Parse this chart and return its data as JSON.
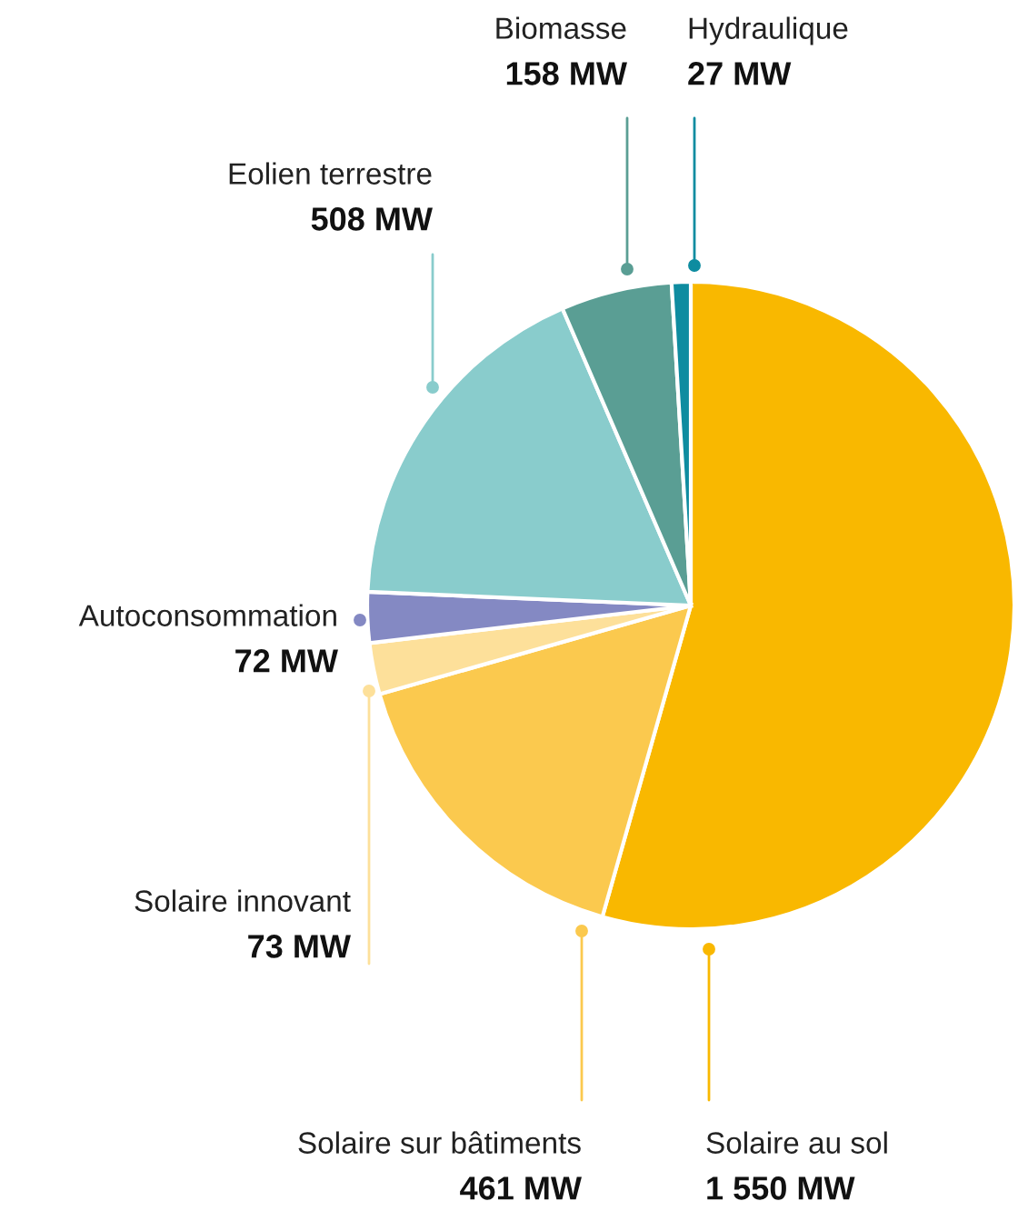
{
  "chart_data": {
    "type": "pie",
    "categories": [
      "Solaire au sol",
      "Solaire sur bâtiments",
      "Solaire innovant",
      "Autoconsommation",
      "Eolien terrestre",
      "Biomasse",
      "Hydraulique"
    ],
    "values": [
      1550,
      461,
      73,
      72,
      508,
      158,
      27
    ],
    "value_labels": [
      "1 550 MW",
      "461 MW",
      "73 MW",
      "72 MW",
      "508 MW",
      "158 MW",
      "27 MW"
    ],
    "colors": [
      "#f9b800",
      "#fbc94e",
      "#fde09a",
      "#8489c3",
      "#89cccc",
      "#5a9e94",
      "#0e8ca0"
    ]
  }
}
